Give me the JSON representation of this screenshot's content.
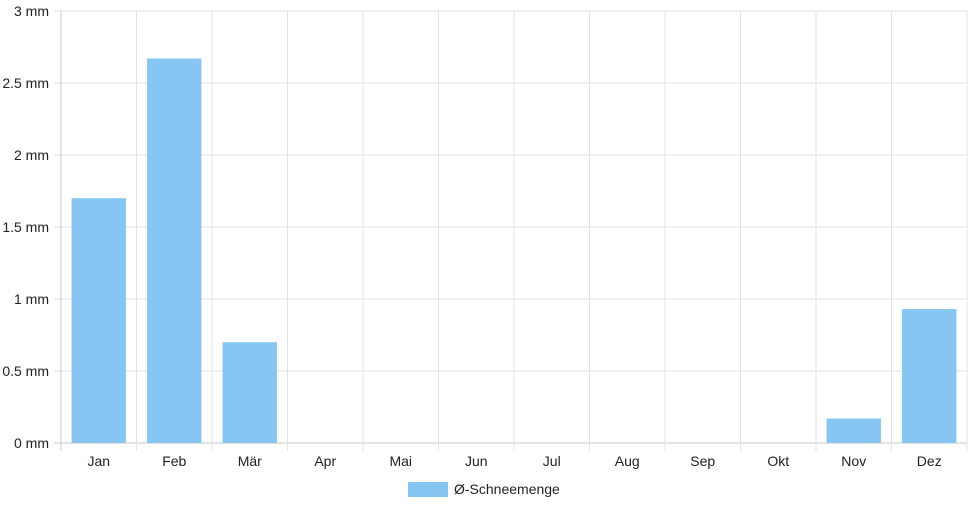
{
  "chart_data": {
    "type": "bar",
    "categories": [
      "Jan",
      "Feb",
      "Mär",
      "Apr",
      "Mai",
      "Jun",
      "Jul",
      "Aug",
      "Sep",
      "Okt",
      "Nov",
      "Dez"
    ],
    "series": [
      {
        "name": "Ø-Schneemenge",
        "values": [
          1.7,
          2.67,
          0.7,
          0,
          0,
          0,
          0,
          0,
          0,
          0,
          0.17,
          0.93
        ],
        "color": "#87c6f2"
      }
    ],
    "y_ticks": [
      "0 mm",
      "0.5 mm",
      "1 mm",
      "1.5 mm",
      "2 mm",
      "2.5 mm",
      "3 mm"
    ],
    "ylim": [
      0,
      3
    ],
    "unit": "mm",
    "grid": true,
    "legend_position": "bottom"
  },
  "colors": {
    "bar": "#87c6f2",
    "grid": "#e3e3e3",
    "axis": "#c8c8c8"
  }
}
